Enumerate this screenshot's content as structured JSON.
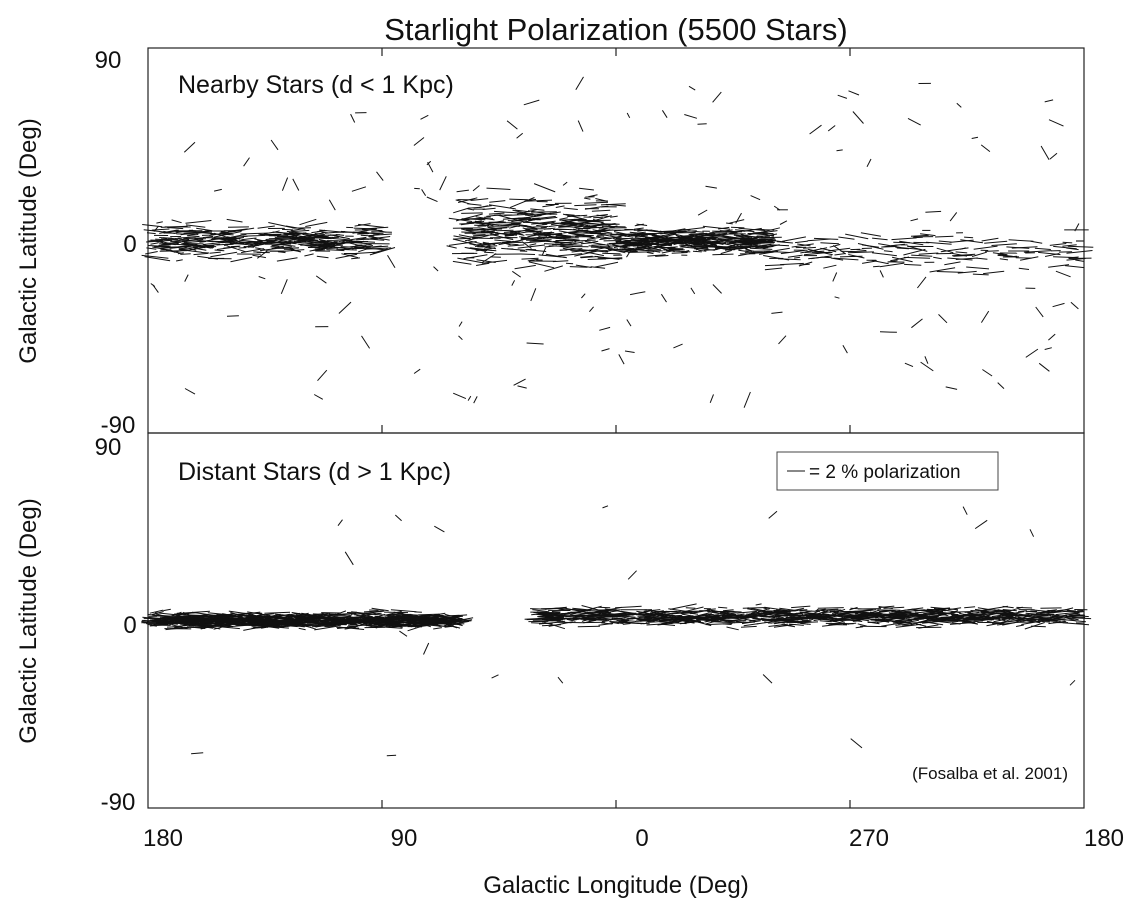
{
  "chart_data": {
    "title": "Starlight Polarization (5500 Stars)",
    "type": "scatter",
    "xlabel": "Galactic Longitude (Deg)",
    "x_ticks": [
      "180",
      "90",
      "0",
      "270",
      "180"
    ],
    "x_tick_values": [
      180,
      90,
      0,
      270,
      180
    ],
    "grid": false,
    "panels": [
      {
        "label": "Nearby Stars (d < 1 Kpc)",
        "ylabel": "Galactic Latitude (Deg)",
        "ylim": [
          -90,
          90
        ],
        "y_ticks": [
          "90",
          "0",
          "-90"
        ],
        "y_tick_values": [
          90,
          0,
          -90
        ],
        "series": [
          {
            "description": "polarization vectors concentrated near the galactic plane, with scattered high-latitude vectors",
            "clusters": [
              {
                "lon_start": 180,
                "lon_end": 90,
                "lat_center": 0,
                "lat_spread": 12,
                "density": "high"
              },
              {
                "lon_start": 60,
                "lon_end": 0,
                "lat_center": 5,
                "lat_spread": 25,
                "density": "high"
              },
              {
                "lon_start": 0,
                "lon_end": 300,
                "lat_center": 0,
                "lat_spread": 10,
                "density": "high"
              },
              {
                "lon_start": 300,
                "lon_end": 180,
                "lat_center": -5,
                "lat_spread": 15,
                "density": "medium"
              }
            ]
          }
        ]
      },
      {
        "label": "Distant Stars (d > 1 Kpc)",
        "ylabel": "Galactic Latitude (Deg)",
        "ylim": [
          -90,
          90
        ],
        "y_ticks": [
          "90",
          "0",
          "-90"
        ],
        "y_tick_values": [
          90,
          0,
          -90
        ],
        "legend": {
          "text": "= 2 % polarization",
          "position": "top-right",
          "reference_polarization_percent": 2
        },
        "citation": "(Fosalba et al. 2001)",
        "series": [
          {
            "description": "polarization vectors tightly concentrated in the galactic plane",
            "clusters": [
              {
                "lon_start": 180,
                "lon_end": 60,
                "lat_center": 0,
                "lat_spread": 6,
                "density": "very high"
              },
              {
                "lon_start": 30,
                "lon_end": 180,
                "lat_center": 2,
                "lat_spread": 7,
                "density": "very high",
                "wraps": true
              }
            ]
          }
        ]
      }
    ]
  }
}
